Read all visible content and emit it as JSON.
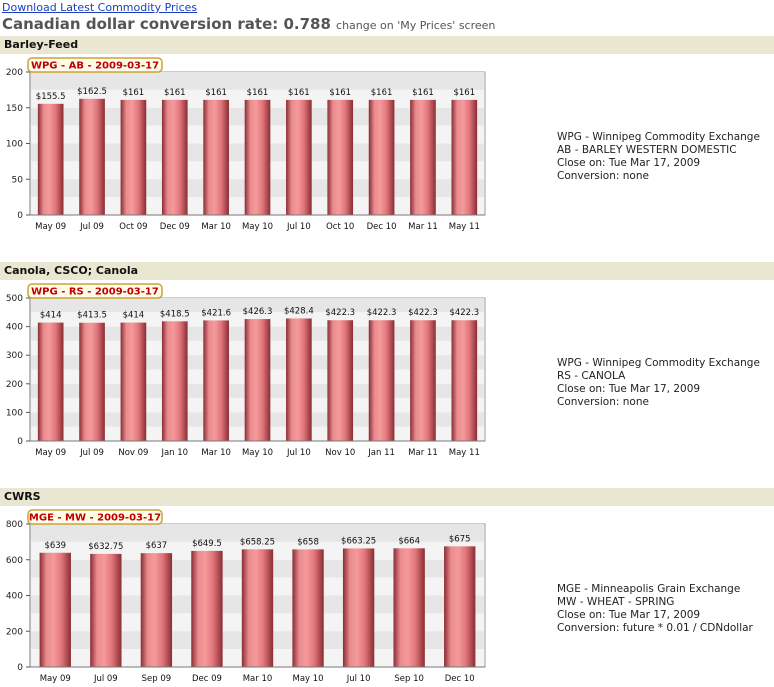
{
  "download_link": "Download Latest Commodity Prices",
  "rate_label": "Canadian dollar conversion rate: 0.788",
  "rate_note": "change on 'My Prices' screen",
  "colors": {
    "section_bg": "#e9e6d2",
    "tab_border": "#c8a43a",
    "tab_bg": "#fffde8",
    "tab_text": "#c00000",
    "bar_mid": "#f59a9a",
    "bar_edge": "#8a2d33",
    "band_dark": "#e6e6e6",
    "band_light": "#f4f4f4"
  },
  "sections": [
    {
      "header": "Barley-Feed",
      "info": [
        "WPG - Winnipeg Commodity Exchange",
        "AB - BARLEY WESTERN DOMESTIC",
        "Close on: Tue Mar 17, 2009",
        "Conversion: none"
      ],
      "chart_data": {
        "type": "bar",
        "title": "WPG  - AB - 2009-03-17",
        "categories": [
          "May 09",
          "Jul 09",
          "Oct 09",
          "Dec 09",
          "Mar 10",
          "May 10",
          "Jul 10",
          "Oct 10",
          "Dec 10",
          "Mar 11",
          "May 11"
        ],
        "values": [
          155.5,
          162.5,
          161,
          161,
          161,
          161,
          161,
          161,
          161,
          161,
          161
        ],
        "value_labels": [
          "$155.5",
          "$162.5",
          "$161",
          "$161",
          "$161",
          "$161",
          "$161",
          "$161",
          "$161",
          "$161",
          "$161"
        ],
        "ylim": [
          0,
          200
        ],
        "yticks": [
          0,
          50,
          100,
          150,
          200
        ]
      }
    },
    {
      "header": "Canola, CSCO; Canola",
      "info": [
        "WPG - Winnipeg Commodity Exchange",
        "RS - CANOLA",
        "Close on: Tue Mar 17, 2009",
        "Conversion: none"
      ],
      "chart_data": {
        "type": "bar",
        "title": "WPG  - RS - 2009-03-17",
        "categories": [
          "May 09",
          "Jul 09",
          "Nov 09",
          "Jan 10",
          "Mar 10",
          "May 10",
          "Jul 10",
          "Nov 10",
          "Jan 11",
          "Mar 11",
          "May 11"
        ],
        "values": [
          414,
          413.5,
          414,
          418.5,
          421.6,
          426.3,
          428.4,
          422.3,
          422.3,
          422.3,
          422.3
        ],
        "value_labels": [
          "$414",
          "$413.5",
          "$414",
          "$418.5",
          "$421.6",
          "$426.3",
          "$428.4",
          "$422.3",
          "$422.3",
          "$422.3",
          "$422.3"
        ],
        "ylim": [
          0,
          500
        ],
        "yticks": [
          0,
          100,
          200,
          300,
          400,
          500
        ]
      }
    },
    {
      "header": "CWRS",
      "info": [
        "MGE - Minneapolis Grain Exchange",
        "MW - WHEAT - SPRING",
        "Close on: Tue Mar 17, 2009",
        "Conversion: future * 0.01 / CDNdollar"
      ],
      "chart_data": {
        "type": "bar",
        "title": "MGE  - MW - 2009-03-17",
        "categories": [
          "May 09",
          "Jul 09",
          "Sep 09",
          "Dec 09",
          "Mar 10",
          "May 10",
          "Jul 10",
          "Sep 10",
          "Dec 10"
        ],
        "values": [
          639,
          632.75,
          637,
          649.5,
          658.25,
          658,
          663.25,
          664,
          675
        ],
        "value_labels": [
          "$639",
          "$632.75",
          "$637",
          "$649.5",
          "$658.25",
          "$658",
          "$663.25",
          "$664",
          "$675"
        ],
        "ylim": [
          0,
          800
        ],
        "yticks": [
          0,
          200,
          400,
          600,
          800
        ]
      }
    }
  ]
}
